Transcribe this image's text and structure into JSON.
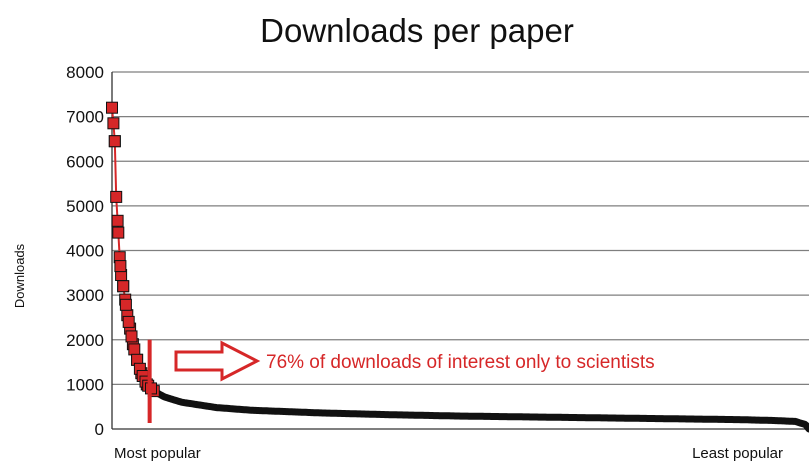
{
  "chart_data": {
    "type": "line",
    "title": "Downloads per paper",
    "xlabel": "",
    "ylabel": "Downloads",
    "ylim": [
      0,
      8000
    ],
    "yticks": [
      0,
      1000,
      2000,
      3000,
      4000,
      5000,
      6000,
      7000,
      8000
    ],
    "grid": true,
    "x_start_label": "Most popular",
    "x_end_label": "Least popular",
    "x_order": "papers ranked by downloads, descending",
    "series": [
      {
        "marker": "square",
        "color": "#d62728",
        "marker_edge_color": "#111111",
        "x_rank_fraction": [
          0.0,
          0.002,
          0.004,
          0.006,
          0.009,
          0.011,
          0.013,
          0.016,
          0.019,
          0.022,
          0.026,
          0.03,
          0.036,
          0.042,
          0.05,
          0.06,
          0.075,
          0.1,
          0.15,
          0.2,
          0.3,
          0.4,
          0.5,
          0.6,
          0.7,
          0.8,
          0.9,
          0.95,
          0.98,
          0.995,
          1.0
        ],
        "values": [
          7200,
          6850,
          6450,
          5200,
          4400,
          3850,
          3450,
          3200,
          2900,
          2550,
          2250,
          1900,
          1550,
          1250,
          1000,
          850,
          720,
          600,
          480,
          420,
          360,
          320,
          290,
          270,
          250,
          230,
          210,
          190,
          170,
          100,
          0
        ]
      }
    ],
    "annotations": [
      {
        "text": "76% of downloads of interest only to scientists",
        "color": "#d62728",
        "cutoff_x_rank_fraction": 0.054,
        "cutoff_line_range": [
          0,
          2000
        ]
      }
    ],
    "colors": {
      "accent": "#d62728",
      "grid": "#7f7f7f",
      "axis": "#333333"
    }
  }
}
